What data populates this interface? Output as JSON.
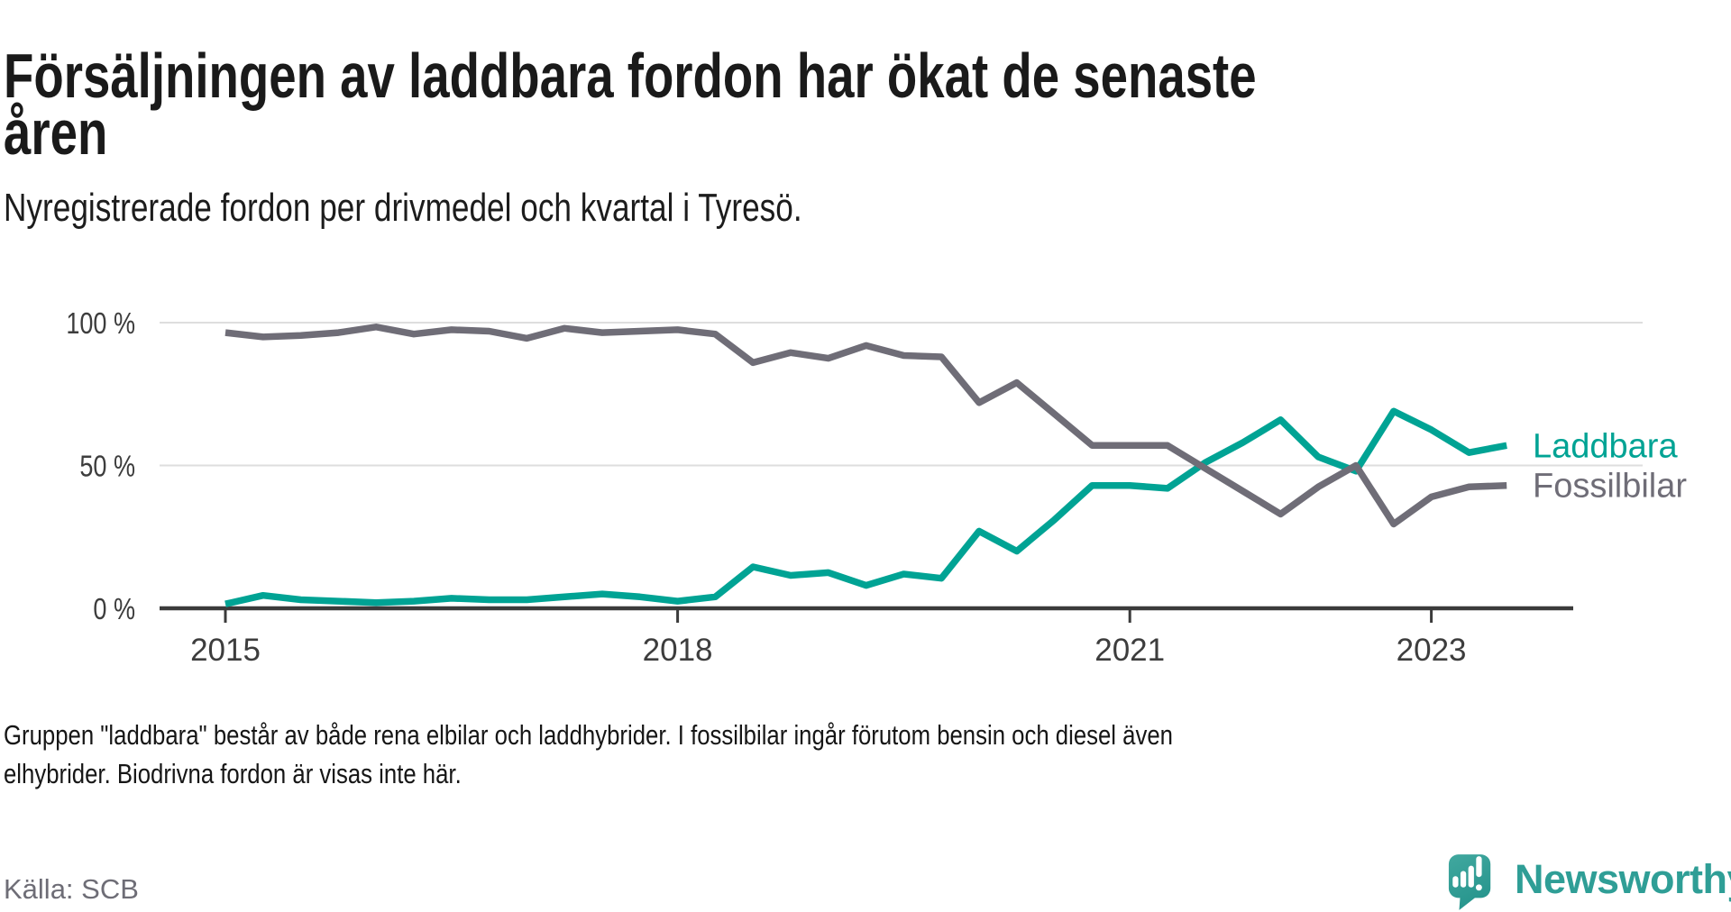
{
  "title": {
    "line1": "Försäljningen av laddbara fordon har ökat de senaste",
    "line2": "åren",
    "full": "Försäljningen av laddbara fordon har ökat de senaste åren"
  },
  "subtitle": "Nyregistrerade fordon per drivmedel och kvartal i Tyresö.",
  "footnote": {
    "line1": "Gruppen \"laddbara\" består av både rena elbilar och laddhybrider. I fossilbilar ingår förutom bensin och diesel även",
    "line2": "elhybrider. Biodrivna fordon är visas inte här."
  },
  "source": "Källa: SCB",
  "logo": {
    "text": "Newsworthy",
    "icon": "speech-bubble-bar-chart-icon"
  },
  "colors": {
    "laddbara": "#00a394",
    "fossilbilar": "#6f6d77",
    "title_text": "#1a1a1a",
    "axis": "#3b3b3b",
    "axis_text": "#3d3d3d",
    "gridline": "#dedede",
    "source_text": "#6e6d76",
    "logo_teal": "#2f9e96",
    "background": "#ffffff"
  },
  "chart_data": {
    "type": "line",
    "title": "Försäljningen av laddbara fordon har ökat de senaste åren",
    "subtitle": "Nyregistrerade fordon per drivmedel och kvartal i Tyresö.",
    "unit": "%",
    "ylim": [
      0,
      100
    ],
    "grid": "horizontal",
    "legend_position": "right-of-line-end",
    "x": [
      "2015 Q1",
      "2015 Q2",
      "2015 Q3",
      "2015 Q4",
      "2016 Q1",
      "2016 Q2",
      "2016 Q3",
      "2016 Q4",
      "2017 Q1",
      "2017 Q2",
      "2017 Q3",
      "2017 Q4",
      "2018 Q1",
      "2018 Q2",
      "2018 Q3",
      "2018 Q4",
      "2019 Q1",
      "2019 Q2",
      "2019 Q3",
      "2019 Q4",
      "2020 Q1",
      "2020 Q2",
      "2020 Q3",
      "2020 Q4",
      "2021 Q1",
      "2021 Q2",
      "2021 Q3",
      "2021 Q4",
      "2022 Q1",
      "2022 Q2",
      "2022 Q3",
      "2022 Q4",
      "2023 Q1",
      "2023 Q2",
      "2023 Q3"
    ],
    "series": [
      {
        "name": "Laddbara",
        "color": "#00a394",
        "values": [
          1.5,
          4.5,
          3,
          2.5,
          2,
          2.5,
          3.5,
          3,
          3,
          4,
          5,
          4,
          2.5,
          4,
          14.5,
          11.5,
          12.5,
          8,
          12,
          10.5,
          27,
          20,
          31,
          43,
          43,
          42,
          51,
          58,
          66,
          53,
          48,
          69,
          62.5,
          54.5,
          57
        ]
      },
      {
        "name": "Fossilbilar",
        "color": "#6f6d77",
        "values": [
          96.5,
          95,
          95.5,
          96.5,
          98.5,
          96,
          97.5,
          97,
          94.5,
          98,
          96.5,
          97,
          97.5,
          96,
          86,
          89.5,
          87.5,
          92,
          88.5,
          88,
          72,
          79,
          68,
          57,
          57,
          57,
          49,
          41,
          33,
          42.5,
          50,
          29.5,
          39,
          42.5,
          43
        ]
      }
    ],
    "y_ticks": [
      {
        "label": "0 %",
        "value": 0
      },
      {
        "label": "50 %",
        "value": 50
      },
      {
        "label": "100 %",
        "value": 100
      }
    ],
    "x_ticks": [
      {
        "label": "2015",
        "index": 0
      },
      {
        "label": "2018",
        "index": 12
      },
      {
        "label": "2021",
        "index": 24
      },
      {
        "label": "2023",
        "index": 32
      }
    ]
  }
}
